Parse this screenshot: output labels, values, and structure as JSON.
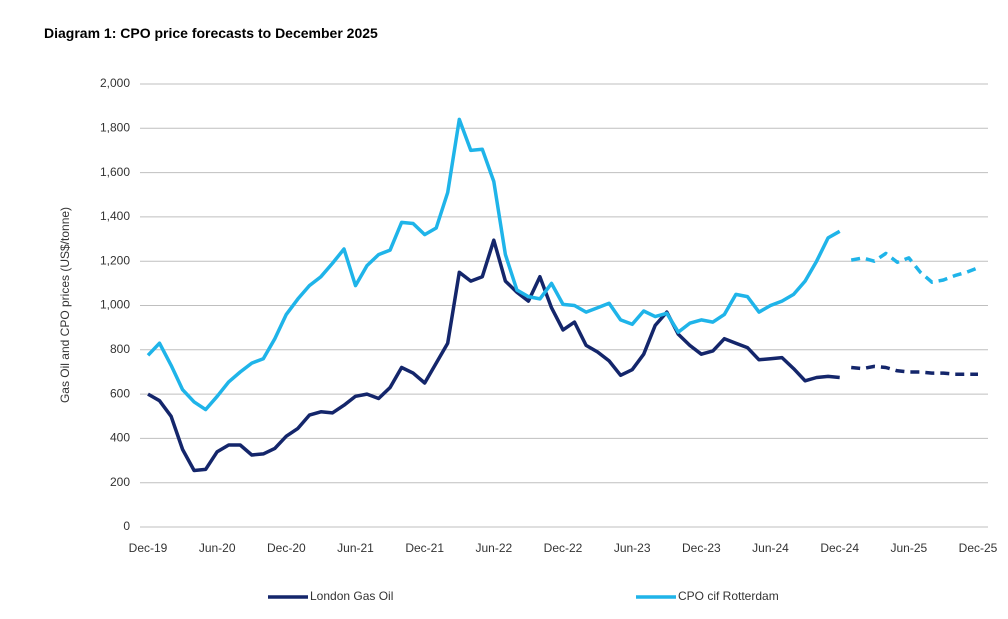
{
  "chart_data": {
    "type": "line",
    "title": "Diagram 1: CPO price forecasts to December 2025",
    "y_label": "Gas Oil and CPO prices (US$/tonne)",
    "categories": [
      "Dec-19",
      null,
      null,
      null,
      null,
      null,
      "Jun-20",
      null,
      null,
      null,
      null,
      null,
      "Dec-20",
      null,
      null,
      null,
      null,
      null,
      "Jun-21",
      null,
      null,
      null,
      null,
      null,
      "Dec-21",
      null,
      null,
      null,
      null,
      null,
      "Jun-22",
      null,
      null,
      null,
      null,
      null,
      "Dec-22",
      null,
      null,
      null,
      null,
      null,
      "Jun-23",
      null,
      null,
      null,
      null,
      null,
      "Dec-23",
      null,
      null,
      null,
      null,
      null,
      "Jun-24",
      null,
      null,
      null,
      null,
      null,
      "Dec-24",
      null,
      null,
      null,
      null,
      null,
      "Jun-25",
      null,
      null,
      null,
      null,
      null,
      "Dec-25"
    ],
    "dashed_from": "Dec-24",
    "series": [
      {
        "name": "London Gas Oil",
        "color": "#14266b",
        "values": [
          600,
          570,
          500,
          350,
          255,
          260,
          340,
          370,
          370,
          325,
          330,
          355,
          410,
          445,
          505,
          520,
          515,
          550,
          590,
          600,
          580,
          630,
          720,
          695,
          650,
          740,
          830,
          1150,
          1110,
          1130,
          1295,
          1110,
          1060,
          1020,
          1130,
          990,
          890,
          925,
          820,
          790,
          750,
          685,
          710,
          780,
          910,
          970,
          870,
          820,
          780,
          795,
          850,
          830,
          810,
          755,
          760,
          765,
          715,
          660,
          675,
          680,
          675,
          720,
          715,
          725,
          720,
          705,
          700,
          700,
          695,
          695,
          690,
          690,
          690
        ]
      },
      {
        "name": "CPO cif Rotterdam",
        "color": "#1fb4e9",
        "values": [
          775,
          830,
          730,
          620,
          565,
          530,
          590,
          655,
          700,
          740,
          760,
          850,
          960,
          1030,
          1090,
          1130,
          1190,
          1255,
          1090,
          1180,
          1230,
          1250,
          1375,
          1370,
          1320,
          1350,
          1510,
          1840,
          1700,
          1705,
          1560,
          1230,
          1070,
          1040,
          1030,
          1100,
          1005,
          1000,
          970,
          990,
          1010,
          935,
          915,
          975,
          950,
          965,
          880,
          920,
          935,
          925,
          960,
          1050,
          1040,
          970,
          1000,
          1020,
          1050,
          1110,
          1200,
          1305,
          1335,
          1205,
          1215,
          1200,
          1235,
          1195,
          1215,
          1150,
          1105,
          1115,
          1135,
          1150,
          1170
        ]
      }
    ],
    "ylim": [
      0,
      2000
    ],
    "yticks": [
      0,
      200,
      400,
      600,
      800,
      {
        "value": 1000,
        "label": "1,000"
      },
      {
        "value": 1200,
        "label": "1,200"
      },
      {
        "value": 1400,
        "label": "1,400"
      },
      {
        "value": 1600,
        "label": "1,600"
      },
      {
        "value": 1800,
        "label": "1,800"
      },
      {
        "value": 2000,
        "label": "2,000"
      }
    ],
    "grid": true,
    "legend": "bottom"
  }
}
